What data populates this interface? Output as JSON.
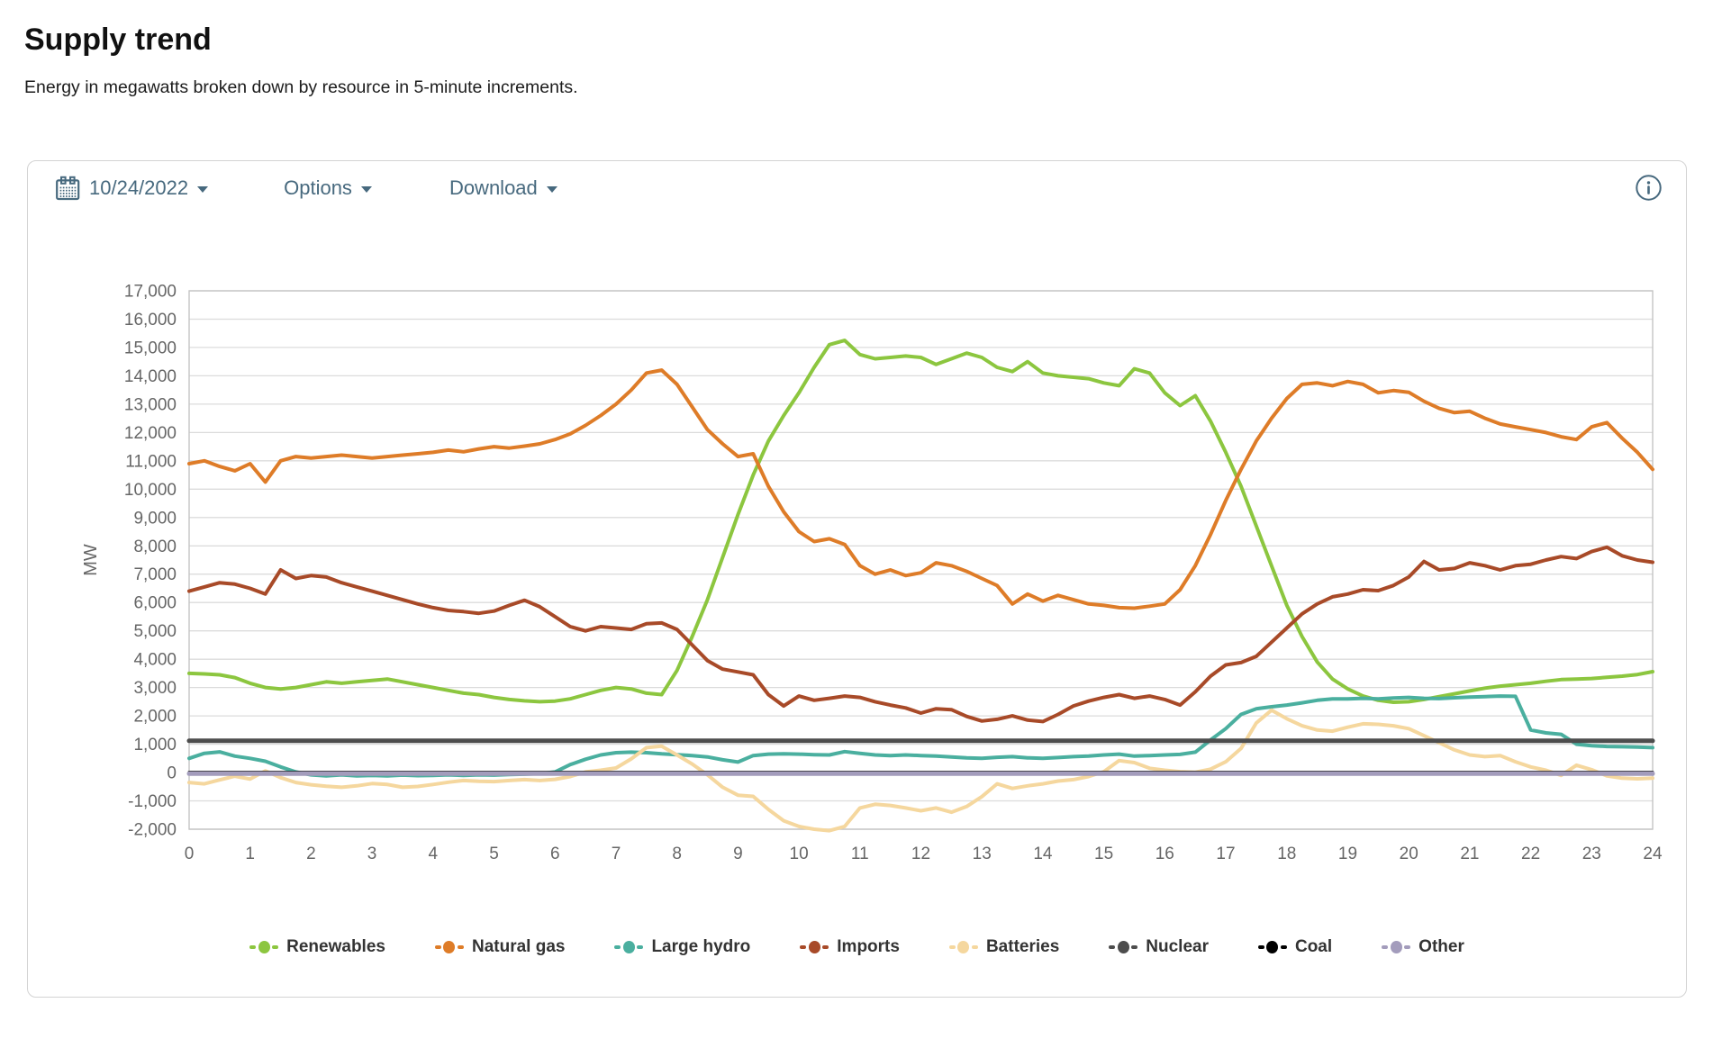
{
  "page": {
    "title": "Supply trend",
    "subtitle": "Energy in megawatts broken down by resource in 5-minute increments."
  },
  "toolbar": {
    "date": "10/24/2022",
    "options_label": "Options",
    "download_label": "Download",
    "accent_color": "#47697e"
  },
  "icons": {
    "date_picker": "calendar-icon",
    "dropdown": "caret-down-icon",
    "top_right": "info-icon"
  },
  "chart_data": {
    "type": "line",
    "title": "Supply trend",
    "xlabel": "",
    "ylabel": "MW",
    "x_unit": "hour of day (0-24)",
    "xlim": [
      0,
      24
    ],
    "ylim": [
      -2000,
      17000
    ],
    "x_ticks": [
      0,
      1,
      2,
      3,
      4,
      5,
      6,
      7,
      8,
      9,
      10,
      11,
      12,
      13,
      14,
      15,
      16,
      17,
      18,
      19,
      20,
      21,
      22,
      23,
      24
    ],
    "y_ticks": [
      17000,
      16000,
      15000,
      14000,
      13000,
      12000,
      11000,
      10000,
      9000,
      8000,
      7000,
      6000,
      5000,
      4000,
      3000,
      2000,
      1000,
      0,
      -1000,
      -2000
    ],
    "grid": "horizontal",
    "legend_position": "bottom",
    "grid_color": "#dcdcdc",
    "border_color": "#c4c4c4",
    "tick_color": "#666666",
    "x_start": 0,
    "x_step": 0.25,
    "series": [
      {
        "name": "Renewables",
        "color": "#8CC63F",
        "width": 4,
        "values": [
          3500,
          3480,
          3450,
          3350,
          3150,
          3000,
          2950,
          3000,
          3100,
          3200,
          3150,
          3200,
          3250,
          3300,
          3200,
          3100,
          3000,
          2900,
          2800,
          2750,
          2650,
          2580,
          2530,
          2500,
          2520,
          2600,
          2750,
          2900,
          3000,
          2950,
          2800,
          2750,
          3600,
          4800,
          6100,
          7600,
          9100,
          10500,
          11700,
          12600,
          13400,
          14300,
          15100,
          15250,
          14750,
          14600,
          14650,
          14700,
          14650,
          14400,
          14600,
          14800,
          14650,
          14300,
          14150,
          14500,
          14100,
          14000,
          13950,
          13900,
          13750,
          13650,
          14250,
          14100,
          13400,
          12950,
          13300,
          12400,
          11300,
          10100,
          8700,
          7300,
          5900,
          4800,
          3900,
          3300,
          2950,
          2700,
          2550,
          2480,
          2500,
          2580,
          2680,
          2780,
          2880,
          2980,
          3050,
          3100,
          3150,
          3220,
          3280,
          3300,
          3320,
          3360,
          3400,
          3460,
          3560
        ]
      },
      {
        "name": "Natural gas",
        "color": "#DE7C28",
        "width": 4,
        "values": [
          10900,
          11000,
          10800,
          10650,
          10900,
          10250,
          11000,
          11150,
          11100,
          11150,
          11200,
          11150,
          11100,
          11150,
          11200,
          11250,
          11300,
          11380,
          11320,
          11420,
          11500,
          11450,
          11520,
          11600,
          11750,
          11950,
          12250,
          12600,
          13000,
          13500,
          14100,
          14200,
          13700,
          12900,
          12100,
          11600,
          11150,
          11250,
          10100,
          9200,
          8500,
          8150,
          8250,
          8050,
          7300,
          7000,
          7150,
          6950,
          7050,
          7400,
          7300,
          7100,
          6850,
          6600,
          5950,
          6300,
          6050,
          6250,
          6100,
          5950,
          5900,
          5820,
          5800,
          5870,
          5950,
          6450,
          7300,
          8400,
          9600,
          10700,
          11700,
          12500,
          13200,
          13700,
          13750,
          13650,
          13800,
          13700,
          13400,
          13480,
          13420,
          13100,
          12850,
          12700,
          12750,
          12500,
          12300,
          12200,
          12100,
          12000,
          11850,
          11750,
          12200,
          12350,
          11800,
          11300,
          10700
        ]
      },
      {
        "name": "Large hydro",
        "color": "#4AAF9F",
        "width": 4,
        "values": [
          500,
          680,
          730,
          580,
          500,
          400,
          200,
          20,
          -80,
          -120,
          -80,
          -120,
          -100,
          -120,
          -90,
          -110,
          -100,
          -80,
          -100,
          -80,
          -90,
          -70,
          -60,
          -40,
          20,
          280,
          470,
          620,
          700,
          720,
          700,
          660,
          630,
          600,
          550,
          450,
          370,
          600,
          650,
          660,
          650,
          630,
          620,
          740,
          680,
          620,
          600,
          620,
          600,
          580,
          550,
          520,
          500,
          540,
          560,
          520,
          500,
          530,
          560,
          580,
          620,
          650,
          580,
          600,
          620,
          640,
          720,
          1150,
          1550,
          2050,
          2250,
          2320,
          2380,
          2460,
          2550,
          2600,
          2600,
          2620,
          2600,
          2630,
          2650,
          2620,
          2610,
          2640,
          2660,
          2680,
          2700,
          2690,
          1500,
          1400,
          1350,
          1000,
          950,
          920,
          910,
          900,
          880
        ]
      },
      {
        "name": "Imports",
        "color": "#A84A28",
        "width": 4,
        "values": [
          6400,
          6550,
          6700,
          6650,
          6500,
          6300,
          7150,
          6850,
          6950,
          6900,
          6700,
          6550,
          6400,
          6250,
          6100,
          5950,
          5820,
          5720,
          5680,
          5620,
          5700,
          5900,
          6080,
          5850,
          5500,
          5150,
          5000,
          5150,
          5100,
          5050,
          5250,
          5280,
          5050,
          4500,
          3950,
          3650,
          3550,
          3450,
          2750,
          2350,
          2700,
          2550,
          2620,
          2700,
          2650,
          2500,
          2380,
          2280,
          2100,
          2250,
          2220,
          1980,
          1820,
          1880,
          2000,
          1850,
          1800,
          2050,
          2350,
          2520,
          2650,
          2750,
          2620,
          2700,
          2580,
          2380,
          2850,
          3400,
          3800,
          3880,
          4100,
          4600,
          5100,
          5600,
          5950,
          6200,
          6300,
          6450,
          6420,
          6600,
          6900,
          7450,
          7150,
          7200,
          7400,
          7300,
          7150,
          7300,
          7350,
          7500,
          7620,
          7550,
          7800,
          7950,
          7650,
          7500,
          7420
        ]
      },
      {
        "name": "Batteries",
        "color": "#F5D79E",
        "width": 4,
        "values": [
          -350,
          -400,
          -260,
          -130,
          -230,
          60,
          -180,
          -350,
          -430,
          -480,
          -520,
          -470,
          -390,
          -420,
          -520,
          -490,
          -420,
          -340,
          -280,
          -310,
          -320,
          -280,
          -250,
          -280,
          -240,
          -140,
          20,
          80,
          160,
          480,
          880,
          930,
          620,
          300,
          -80,
          -520,
          -800,
          -840,
          -1300,
          -1700,
          -1900,
          -2000,
          -2050,
          -1900,
          -1250,
          -1120,
          -1160,
          -1250,
          -1350,
          -1250,
          -1400,
          -1200,
          -850,
          -400,
          -560,
          -470,
          -400,
          -300,
          -250,
          -140,
          30,
          420,
          350,
          150,
          80,
          30,
          10,
          120,
          380,
          850,
          1750,
          2200,
          1900,
          1650,
          1500,
          1460,
          1600,
          1720,
          1700,
          1650,
          1550,
          1300,
          1050,
          800,
          620,
          560,
          600,
          380,
          200,
          80,
          -100,
          260,
          100,
          -120,
          -200,
          -220,
          -200
        ]
      },
      {
        "name": "Nuclear",
        "color": "#4D4D4D",
        "width": 5,
        "const": 1120
      },
      {
        "name": "Coal",
        "color": "#000000",
        "width": 3,
        "const": 15
      },
      {
        "name": "Other",
        "color": "#A39CBC",
        "width": 5,
        "const": -40
      }
    ]
  }
}
